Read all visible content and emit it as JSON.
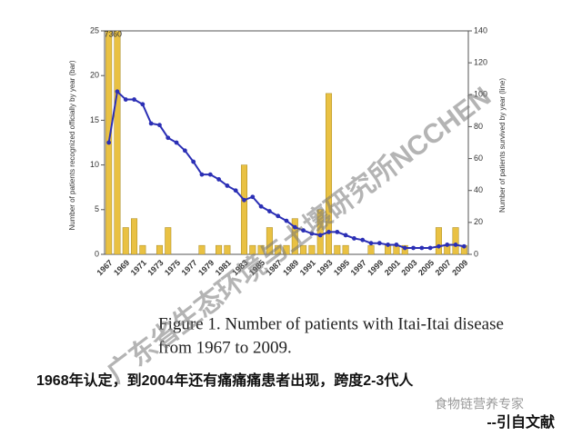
{
  "chart_data": {
    "type": "combo",
    "y_label": "Number of patients recognized officially by year (bar)",
    "y2_label": "Number of patients survived by year (line)",
    "categories": [
      "1967",
      null,
      "1969",
      null,
      "1971",
      null,
      "1973",
      null,
      "1975",
      null,
      "1977",
      null,
      "1979",
      null,
      "1981",
      null,
      "1983",
      null,
      "1985",
      null,
      "1987",
      null,
      "1989",
      null,
      "1991",
      null,
      "1993",
      null,
      "1995",
      null,
      "1997",
      null,
      "1999",
      null,
      "2001",
      null,
      "2003",
      null,
      "2005",
      null,
      "2007",
      null,
      "2009"
    ],
    "series": [
      {
        "type": "bar",
        "color": "#e9c143",
        "values": [
          73,
          60,
          3,
          4,
          1,
          0,
          1,
          3,
          0,
          0,
          0,
          1,
          0,
          1,
          1,
          0,
          10,
          1,
          1,
          3,
          1,
          1,
          4,
          1,
          1,
          5,
          18,
          1,
          1,
          0,
          0,
          1,
          0,
          1,
          1,
          1,
          0,
          0,
          0,
          3,
          1,
          3,
          1
        ]
      },
      {
        "type": "line",
        "color": "#2b2fb5",
        "axis": "y2",
        "values": [
          70,
          102,
          97,
          97,
          94,
          82,
          81,
          73,
          70,
          65,
          58,
          50,
          50,
          47,
          43,
          40,
          34,
          36,
          30,
          27,
          24,
          21,
          17,
          15,
          13,
          12,
          14,
          14,
          12,
          10,
          9,
          7,
          7,
          6,
          6,
          4,
          4,
          4,
          4,
          5,
          6,
          6,
          5
        ]
      }
    ],
    "ylim": [
      0,
      25
    ],
    "yticks": [
      0,
      5,
      10,
      15,
      20,
      25
    ],
    "y2lim": [
      0,
      140
    ],
    "y2ticks": [
      0,
      20,
      40,
      60,
      80,
      100,
      120,
      140
    ],
    "caption": [
      "Figure 1. Number of patients with Itai-Itai disease",
      "from 1967 to 2009."
    ]
  },
  "note": "1968年认定，到2004年还有痛痛痛患者出现，跨度2-3代人",
  "source": "--引自文献",
  "logo": "食物链营养专家",
  "watermark": "广东省生态环境与土壤研究所NCCHEN"
}
